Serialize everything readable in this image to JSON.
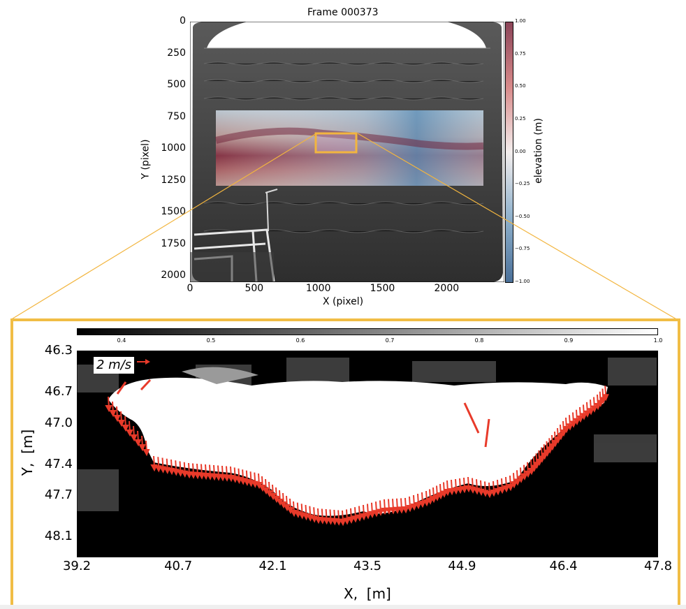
{
  "chart_data": [
    {
      "type": "heatmap",
      "title": "Frame 000373",
      "xlabel": "X (pixel)",
      "ylabel": "Y (pixel)",
      "x_ticks": [
        "0",
        "500",
        "1000",
        "1500",
        "2000"
      ],
      "y_ticks": [
        "0",
        "250",
        "500",
        "750",
        "1000",
        "1250",
        "1500",
        "1750",
        "2000"
      ],
      "xlim": [
        0,
        2450
      ],
      "ylim": [
        2048,
        0
      ],
      "overlay_region": {
        "x": [
          200,
          2300
        ],
        "y": [
          700,
          1300
        ]
      },
      "highlight_box": {
        "x": [
          980,
          1300
        ],
        "y": [
          880,
          1030
        ],
        "color": "#f2b53f"
      },
      "colorbar": {
        "label": "elevation (m)",
        "ticks": [
          "1.00",
          "0.75",
          "0.50",
          "0.25",
          "0.00",
          "−0.25",
          "−0.50",
          "−0.75",
          "−1.00"
        ],
        "range": [
          -1.0,
          1.0
        ],
        "colormap": "RdBu_r"
      }
    },
    {
      "type": "heatmap",
      "xlabel": "X,  [m]",
      "ylabel": "Y,  [m]",
      "x_ticks": [
        "39.2",
        "40.7",
        "42.1",
        "43.5",
        "44.9",
        "46.4",
        "47.8"
      ],
      "y_ticks": [
        "46.3",
        "46.7",
        "47.0",
        "47.4",
        "47.7",
        "48.1"
      ],
      "xlim": [
        39.2,
        47.8
      ],
      "ylim": [
        48.3,
        46.3
      ],
      "colorbar": {
        "ticks": [
          "0.4",
          "0.5",
          "0.6",
          "0.7",
          "0.8",
          "0.9",
          "1.0"
        ],
        "range": [
          0.35,
          1.0
        ],
        "colormap": "gray"
      },
      "quiver_key": {
        "label": "2 m/s",
        "color": "#e83a2a"
      },
      "vector_color": "#e83a2a"
    }
  ],
  "frame_color": "#f1bd45"
}
